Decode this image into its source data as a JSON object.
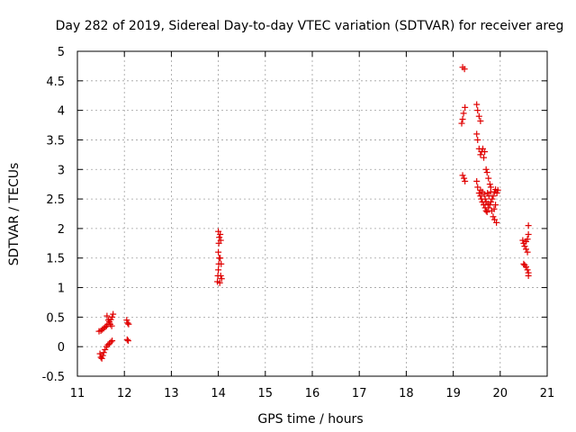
{
  "chart_data": {
    "type": "scatter",
    "title": "Day 282 of 2019, Sidereal Day-to-day VTEC variation (SDTVAR) for receiver areg",
    "xlabel": "GPS time / hours",
    "ylabel": "SDTVAR / TECUs",
    "xlim": [
      11,
      21
    ],
    "ylim": [
      -0.5,
      5
    ],
    "xticks": [
      11,
      12,
      13,
      14,
      15,
      16,
      17,
      18,
      19,
      20,
      21
    ],
    "yticks": [
      -0.5,
      0,
      0.5,
      1,
      1.5,
      2,
      2.5,
      3,
      3.5,
      4,
      4.5,
      5
    ],
    "xtick_labels": [
      "11",
      "12",
      "13",
      "14",
      "15",
      "16",
      "17",
      "18",
      "19",
      "20",
      "21"
    ],
    "ytick_labels": [
      "-0.5",
      "0",
      "0.5",
      "1",
      "1.5",
      "2",
      "2.5",
      "3",
      "3.5",
      "4",
      "4.5",
      "5"
    ],
    "grid": true,
    "marker": "+",
    "color": "#e00000",
    "series": [
      {
        "name": "SDTVAR",
        "points": [
          [
            11.46,
            0.26
          ],
          [
            11.5,
            0.27
          ],
          [
            11.53,
            0.29
          ],
          [
            11.56,
            0.31
          ],
          [
            11.59,
            0.33
          ],
          [
            11.62,
            0.35
          ],
          [
            11.65,
            0.38
          ],
          [
            11.68,
            0.42
          ],
          [
            11.71,
            0.46
          ],
          [
            11.74,
            0.5
          ],
          [
            11.76,
            0.55
          ],
          [
            11.63,
            0.52
          ],
          [
            11.66,
            0.45
          ],
          [
            11.7,
            0.38
          ],
          [
            11.73,
            0.35
          ],
          [
            11.48,
            -0.12
          ],
          [
            11.5,
            -0.18
          ],
          [
            11.52,
            -0.2
          ],
          [
            11.54,
            -0.15
          ],
          [
            11.56,
            -0.1
          ],
          [
            11.59,
            -0.05
          ],
          [
            11.62,
            0.0
          ],
          [
            11.65,
            0.03
          ],
          [
            11.68,
            0.05
          ],
          [
            11.71,
            0.08
          ],
          [
            11.74,
            0.1
          ],
          [
            12.05,
            0.45
          ],
          [
            12.07,
            0.4
          ],
          [
            12.09,
            0.38
          ],
          [
            12.06,
            0.12
          ],
          [
            12.08,
            0.1
          ],
          [
            13.98,
            1.1
          ],
          [
            13.99,
            1.2
          ],
          [
            14.0,
            1.3
          ],
          [
            14.01,
            1.4
          ],
          [
            14.02,
            1.5
          ],
          [
            14.0,
            1.6
          ],
          [
            14.01,
            1.75
          ],
          [
            14.02,
            1.85
          ],
          [
            14.0,
            1.95
          ],
          [
            14.04,
            1.9
          ],
          [
            14.05,
            1.8
          ],
          [
            14.04,
            1.5
          ],
          [
            14.06,
            1.4
          ],
          [
            14.05,
            1.2
          ],
          [
            14.07,
            1.15
          ],
          [
            14.03,
            1.08
          ],
          [
            19.2,
            4.73
          ],
          [
            19.24,
            4.7
          ],
          [
            19.2,
            3.85
          ],
          [
            19.22,
            3.95
          ],
          [
            19.25,
            4.05
          ],
          [
            19.18,
            3.78
          ],
          [
            19.2,
            2.9
          ],
          [
            19.23,
            2.85
          ],
          [
            19.25,
            2.8
          ],
          [
            19.5,
            4.1
          ],
          [
            19.52,
            4.0
          ],
          [
            19.55,
            3.9
          ],
          [
            19.58,
            3.82
          ],
          [
            19.5,
            3.6
          ],
          [
            19.52,
            3.5
          ],
          [
            19.55,
            3.35
          ],
          [
            19.6,
            3.3
          ],
          [
            19.63,
            3.35
          ],
          [
            19.58,
            3.25
          ],
          [
            19.65,
            3.2
          ],
          [
            19.67,
            3.3
          ],
          [
            19.5,
            2.8
          ],
          [
            19.52,
            2.7
          ],
          [
            19.55,
            2.6
          ],
          [
            19.58,
            2.55
          ],
          [
            19.6,
            2.5
          ],
          [
            19.62,
            2.45
          ],
          [
            19.65,
            2.4
          ],
          [
            19.68,
            2.35
          ],
          [
            19.7,
            2.3
          ],
          [
            19.72,
            2.28
          ],
          [
            19.75,
            2.35
          ],
          [
            19.78,
            2.4
          ],
          [
            19.8,
            2.45
          ],
          [
            19.83,
            2.5
          ],
          [
            19.85,
            2.55
          ],
          [
            19.88,
            2.62
          ],
          [
            19.9,
            2.66
          ],
          [
            19.93,
            2.6
          ],
          [
            19.95,
            2.65
          ],
          [
            19.7,
            3.0
          ],
          [
            19.72,
            2.95
          ],
          [
            19.75,
            2.85
          ],
          [
            19.78,
            2.75
          ],
          [
            19.8,
            2.7
          ],
          [
            19.73,
            2.6
          ],
          [
            19.76,
            2.55
          ],
          [
            19.7,
            2.45
          ],
          [
            19.68,
            2.5
          ],
          [
            19.66,
            2.58
          ],
          [
            19.74,
            2.42
          ],
          [
            19.82,
            2.3
          ],
          [
            19.85,
            2.2
          ],
          [
            19.88,
            2.15
          ],
          [
            19.92,
            2.1
          ],
          [
            19.62,
            2.62
          ],
          [
            19.58,
            2.65
          ],
          [
            19.8,
            2.62
          ],
          [
            19.9,
            2.4
          ],
          [
            19.87,
            2.33
          ],
          [
            20.48,
            1.8
          ],
          [
            20.5,
            1.75
          ],
          [
            20.52,
            1.7
          ],
          [
            20.55,
            1.65
          ],
          [
            20.58,
            1.6
          ],
          [
            20.6,
            1.9
          ],
          [
            20.6,
            2.05
          ],
          [
            20.58,
            1.82
          ],
          [
            20.55,
            1.78
          ],
          [
            20.5,
            1.4
          ],
          [
            20.52,
            1.38
          ],
          [
            20.55,
            1.35
          ],
          [
            20.58,
            1.3
          ],
          [
            20.6,
            1.25
          ],
          [
            20.6,
            1.2
          ]
        ]
      }
    ]
  }
}
